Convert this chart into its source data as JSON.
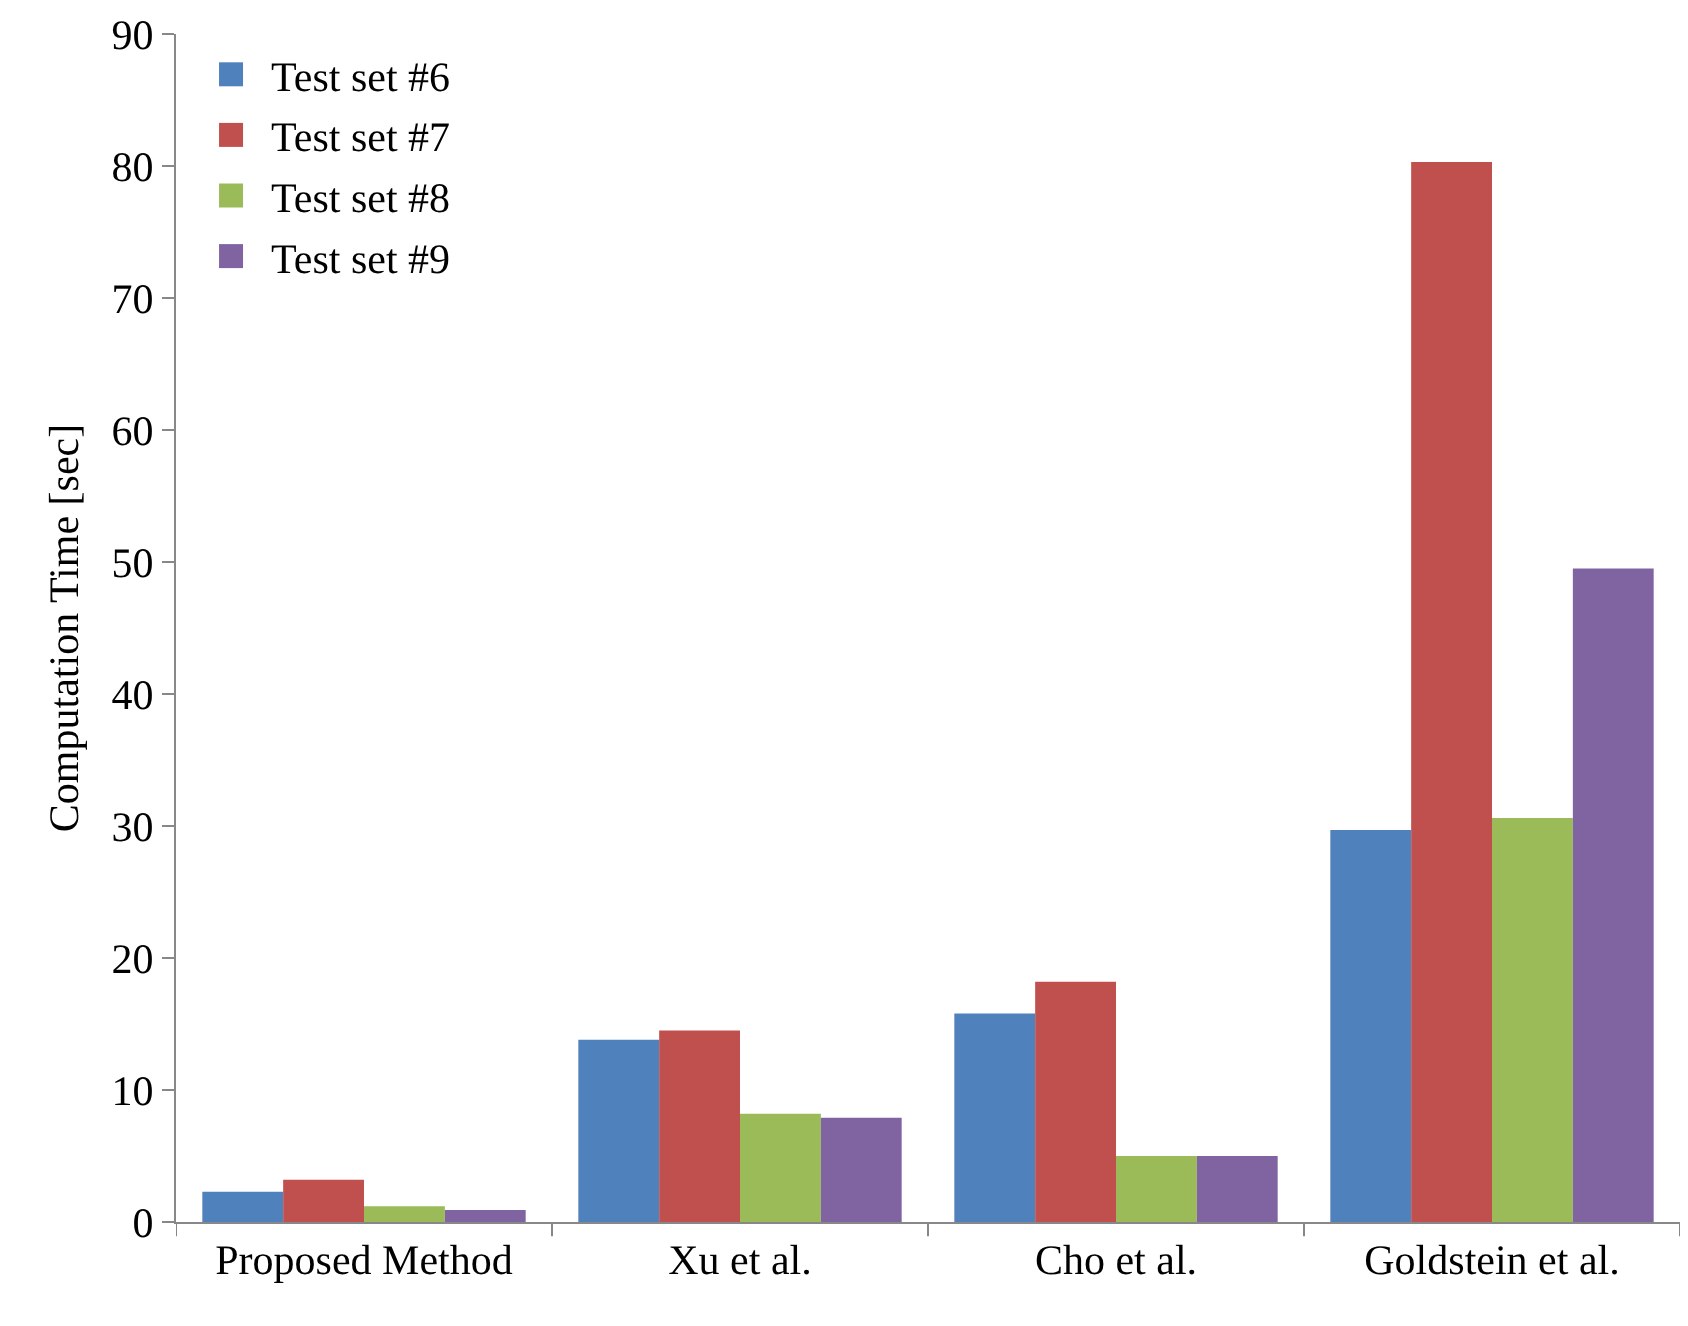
{
  "chart_data": {
    "type": "bar",
    "ylabel": "Computation Time [sec]",
    "categories": [
      "Proposed Method",
      "Xu et al.",
      "Cho et al.",
      "Goldstein et al."
    ],
    "series": [
      {
        "name": "Test set #6",
        "color": "#4f81bd",
        "values": [
          2.3,
          13.8,
          15.8,
          29.7
        ]
      },
      {
        "name": "Test set #7",
        "color": "#c0504d",
        "values": [
          3.2,
          14.5,
          18.2,
          80.3
        ]
      },
      {
        "name": "Test set #8",
        "color": "#9bbb59",
        "values": [
          1.2,
          8.2,
          5.0,
          30.6
        ]
      },
      {
        "name": "Test set #9",
        "color": "#8064a2",
        "values": [
          0.9,
          7.9,
          5.0,
          49.5
        ]
      }
    ],
    "ylim": [
      0,
      90
    ],
    "yticks": [
      0,
      10,
      20,
      30,
      40,
      50,
      60,
      70,
      80,
      90
    ],
    "grid": false,
    "legend": "top left"
  }
}
